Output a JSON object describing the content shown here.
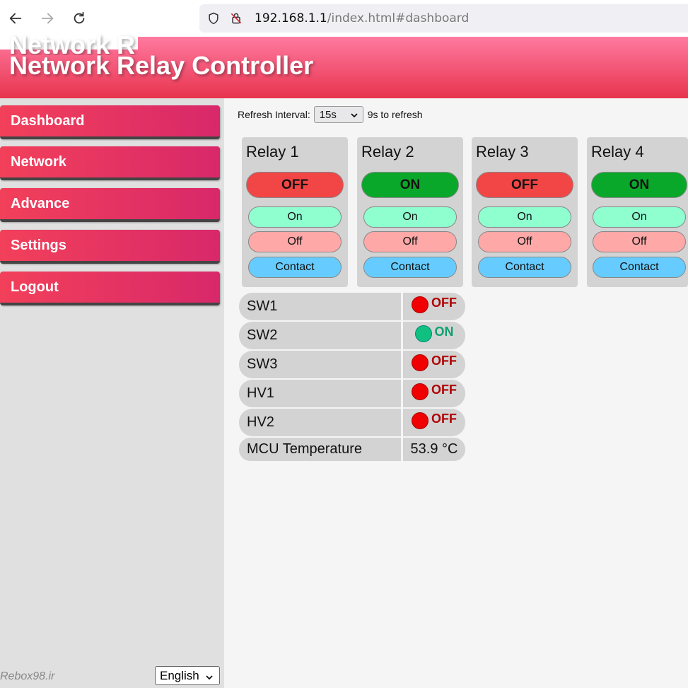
{
  "browser": {
    "url_host": "192.168.1.1",
    "url_path": "/index.html#dashboard"
  },
  "header": {
    "title": "Network Relay Controller",
    "title_ghost": "Network R"
  },
  "sidebar": {
    "items": [
      {
        "label": "Dashboard"
      },
      {
        "label": "Network"
      },
      {
        "label": "Advance"
      },
      {
        "label": "Settings"
      },
      {
        "label": "Logout"
      }
    ],
    "brand": "Rebox98.ir",
    "language": "English"
  },
  "refresh": {
    "label": "Refresh Interval:",
    "interval": "15s",
    "countdown": "9s to refresh"
  },
  "relays": [
    {
      "name": "Relay 1",
      "state": "OFF",
      "on_label": "On",
      "off_label": "Off",
      "contact_label": "Contact"
    },
    {
      "name": "Relay 2",
      "state": "ON",
      "on_label": "On",
      "off_label": "Off",
      "contact_label": "Contact"
    },
    {
      "name": "Relay 3",
      "state": "OFF",
      "on_label": "On",
      "off_label": "Off",
      "contact_label": "Contact"
    },
    {
      "name": "Relay 4",
      "state": "ON",
      "on_label": "On",
      "off_label": "Off",
      "contact_label": "Contact"
    }
  ],
  "status": [
    {
      "label": "SW1",
      "value": "OFF"
    },
    {
      "label": "SW2",
      "value": "ON"
    },
    {
      "label": "SW3",
      "value": "OFF"
    },
    {
      "label": "HV1",
      "value": "OFF"
    },
    {
      "label": "HV2",
      "value": "OFF"
    },
    {
      "label": "MCU Temperature",
      "value": "53.9 °C"
    }
  ],
  "colors": {
    "state_off": "#f24545",
    "state_on": "#0aa82a",
    "accent": "#e8344e"
  }
}
